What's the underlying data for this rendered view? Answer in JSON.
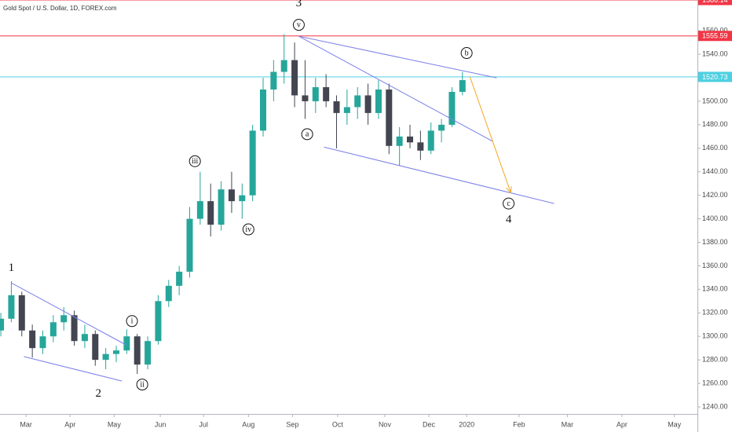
{
  "chart_data": {
    "type": "candlestick",
    "title": "Gold Spot / U.S. Dollar, 1D, FOREX.com",
    "x": [
      -12,
      -7,
      -2,
      3,
      8,
      13,
      18,
      23,
      28,
      33,
      38,
      43,
      48,
      53,
      58,
      63,
      68,
      73,
      78,
      83,
      88,
      93,
      98,
      103,
      108,
      113,
      118,
      123,
      128,
      133,
      138,
      143,
      148,
      153,
      158,
      163,
      168,
      173,
      178,
      183,
      188,
      193,
      198,
      203,
      208
    ],
    "open": [
      1305,
      1315,
      1335,
      1305,
      1290,
      1300,
      1312,
      1318,
      1296,
      1302,
      1280,
      1285,
      1288,
      1300,
      1276,
      1296,
      1330,
      1343,
      1355,
      1400,
      1415,
      1395,
      1425,
      1415,
      1420,
      1475,
      1510,
      1525,
      1535,
      1505,
      1500,
      1512,
      1500,
      1490,
      1495,
      1505,
      1490,
      1510,
      1462,
      1470,
      1465,
      1458,
      1475,
      1480,
      1508
    ],
    "high": [
      1320,
      1347,
      1338,
      1310,
      1305,
      1318,
      1325,
      1322,
      1310,
      1305,
      1290,
      1292,
      1306,
      1302,
      1300,
      1335,
      1348,
      1360,
      1410,
      1440,
      1430,
      1432,
      1440,
      1430,
      1480,
      1520,
      1535,
      1557,
      1550,
      1535,
      1520,
      1523,
      1505,
      1510,
      1512,
      1515,
      1518,
      1515,
      1478,
      1480,
      1475,
      1482,
      1485,
      1512,
      1525
    ],
    "low": [
      1300,
      1312,
      1300,
      1282,
      1285,
      1295,
      1305,
      1292,
      1290,
      1275,
      1272,
      1278,
      1285,
      1268,
      1272,
      1293,
      1325,
      1335,
      1350,
      1395,
      1385,
      1390,
      1405,
      1400,
      1415,
      1470,
      1500,
      1515,
      1495,
      1485,
      1490,
      1495,
      1460,
      1480,
      1485,
      1480,
      1485,
      1455,
      1445,
      1460,
      1450,
      1455,
      1465,
      1478,
      1505
    ],
    "close": [
      1315,
      1335,
      1305,
      1290,
      1300,
      1312,
      1318,
      1296,
      1302,
      1280,
      1285,
      1288,
      1300,
      1276,
      1296,
      1330,
      1343,
      1355,
      1400,
      1415,
      1395,
      1425,
      1415,
      1420,
      1475,
      1510,
      1525,
      1535,
      1505,
      1500,
      1512,
      1500,
      1490,
      1495,
      1505,
      1490,
      1510,
      1462,
      1470,
      1465,
      1458,
      1475,
      1480,
      1508,
      1518
    ],
    "up_color": "#26a69a",
    "down_color": "#434651",
    "xlim": [
      -12.4,
      320
    ],
    "xticks": [
      {
        "value": 0,
        "label": "Mar"
      },
      {
        "value": 21,
        "label": "Apr"
      },
      {
        "value": 42,
        "label": "May"
      },
      {
        "value": 64,
        "label": "Jun"
      },
      {
        "value": 84.6,
        "label": "Jul"
      },
      {
        "value": 106,
        "label": "Aug"
      },
      {
        "value": 127,
        "label": "Sep"
      },
      {
        "value": 148.5,
        "label": "Oct"
      },
      {
        "value": 171,
        "label": "Nov"
      },
      {
        "value": 192,
        "label": "Dec"
      },
      {
        "value": 210,
        "label": "2020"
      },
      {
        "value": 235,
        "label": "Feb"
      },
      {
        "value": 258,
        "label": "Mar"
      },
      {
        "value": 284,
        "label": "Apr"
      },
      {
        "value": 309,
        "label": "May"
      }
    ],
    "ylim": [
      1234,
      1586.14
    ],
    "yticks": [
      {
        "value": 1240,
        "label": "1240.00"
      },
      {
        "value": 1260,
        "label": "1260.00"
      },
      {
        "value": 1280,
        "label": "1280.00"
      },
      {
        "value": 1300,
        "label": "1300.00"
      },
      {
        "value": 1320,
        "label": "1320.00"
      },
      {
        "value": 1340,
        "label": "1340.00"
      },
      {
        "value": 1360,
        "label": "1360.00"
      },
      {
        "value": 1380,
        "label": "1380.00"
      },
      {
        "value": 1400,
        "label": "1400.00"
      },
      {
        "value": 1420,
        "label": "1420.00"
      },
      {
        "value": 1440,
        "label": "1440.00"
      },
      {
        "value": 1460,
        "label": "1460.00"
      },
      {
        "value": 1480,
        "label": "1480.00"
      },
      {
        "value": 1500,
        "label": "1500.00"
      },
      {
        "value": 1520,
        "label": "1520.00"
      },
      {
        "value": 1540,
        "label": "1540.00"
      },
      {
        "value": 1560,
        "label": "1560.00"
      }
    ],
    "grid": false,
    "price_lines": [
      {
        "value": 1586.14,
        "color": "#f23645"
      },
      {
        "value": 1555.59,
        "color": "#f23645"
      },
      {
        "value": 1520.73,
        "color": "#4dd0e1"
      }
    ],
    "trendlines": [
      {
        "x": [
          -7,
          47.6
        ],
        "y": [
          1345.5,
          1292.8
        ],
        "color": "#7b7fe8"
      },
      {
        "x": [
          -1,
          45.7
        ],
        "y": [
          1282.8,
          1262
        ],
        "color": "#7b7fe8"
      },
      {
        "x": [
          130,
          224.3
        ],
        "y": [
          1555.3,
          1519.9
        ],
        "color": "#7b7fe8"
      },
      {
        "x": [
          130,
          222.5
        ],
        "y": [
          1555.3,
          1465.8
        ],
        "color": "#7b7fe8"
      },
      {
        "x": [
          142,
          251.7
        ],
        "y": [
          1461,
          1413
        ],
        "color": "#7b7fe8"
      },
      {
        "x": [
          211.6,
          231
        ],
        "y": [
          1520.6,
          1422.4
        ],
        "color": "#f5a623",
        "arrow": true
      }
    ],
    "annotations": [
      {
        "label": "1",
        "x": -7,
        "y": 1358,
        "circled": false
      },
      {
        "label": "2",
        "x": 34.5,
        "y": 1251,
        "circled": false
      },
      {
        "label": "3",
        "x": 130,
        "y": 1583,
        "circled": false
      },
      {
        "label": "4",
        "x": 230,
        "y": 1399,
        "circled": false
      },
      {
        "label": "i",
        "x": 50.5,
        "y": 1313,
        "circled": true
      },
      {
        "label": "ii",
        "x": 55.4,
        "y": 1259,
        "circled": true
      },
      {
        "label": "iii",
        "x": 80.5,
        "y": 1449,
        "circled": true
      },
      {
        "label": "iv",
        "x": 106,
        "y": 1391,
        "circled": true
      },
      {
        "label": "v",
        "x": 130,
        "y": 1565,
        "circled": true
      },
      {
        "label": "a",
        "x": 134,
        "y": 1472,
        "circled": true
      },
      {
        "label": "b",
        "x": 210,
        "y": 1541,
        "circled": true
      },
      {
        "label": "c",
        "x": 230,
        "y": 1413,
        "circled": true
      }
    ]
  }
}
